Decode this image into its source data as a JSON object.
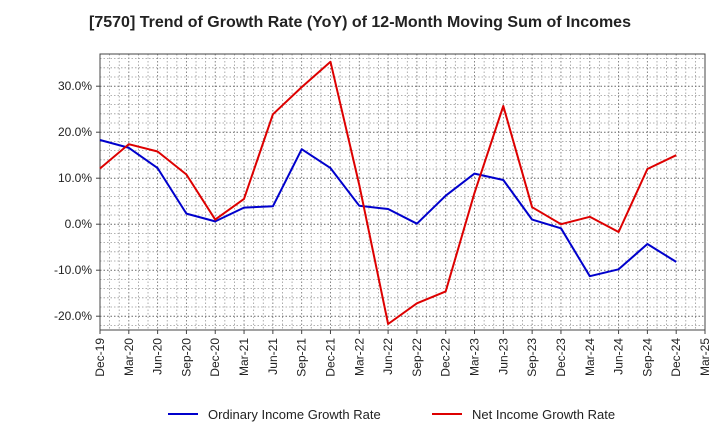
{
  "chart_data": {
    "type": "line",
    "title": "[7570]  Trend of Growth Rate (YoY) of 12-Month Moving Sum of Incomes",
    "x": [
      "Dec-19",
      "Mar-20",
      "Jun-20",
      "Sep-20",
      "Dec-20",
      "Mar-21",
      "Jun-21",
      "Sep-21",
      "Dec-21",
      "Mar-22",
      "Jun-22",
      "Sep-22",
      "Dec-22",
      "Mar-23",
      "Jun-23",
      "Sep-23",
      "Dec-23",
      "Mar-24",
      "Jun-24",
      "Sep-24",
      "Dec-24",
      "Mar-25"
    ],
    "yticks": [
      -20,
      -10,
      0,
      10,
      20,
      30
    ],
    "ytick_labels": [
      "-20.0%",
      "-10.0%",
      "0.0%",
      "10.0%",
      "20.0%",
      "30.0%"
    ],
    "ylim": [
      -23,
      37
    ],
    "grid": true,
    "legend_position": "bottom",
    "series": [
      {
        "name": "Ordinary Income Growth Rate",
        "color": "#0000cc",
        "values": [
          18.3,
          16.6,
          12.2,
          2.3,
          0.6,
          3.6,
          3.9,
          16.3,
          12.2,
          4.0,
          3.3,
          0.1,
          6.2,
          11.0,
          9.6,
          1.0,
          -0.9,
          -11.3,
          -9.8,
          -4.3,
          -8.2,
          null
        ]
      },
      {
        "name": "Net Income Growth Rate",
        "color": "#dd0000",
        "values": [
          12.1,
          17.4,
          15.8,
          10.8,
          1.0,
          5.5,
          23.9,
          29.8,
          35.3,
          8.5,
          -21.7,
          -17.2,
          -14.6,
          6.8,
          25.7,
          3.7,
          0.0,
          1.6,
          -1.7,
          12.0,
          15.0,
          null
        ]
      }
    ]
  }
}
